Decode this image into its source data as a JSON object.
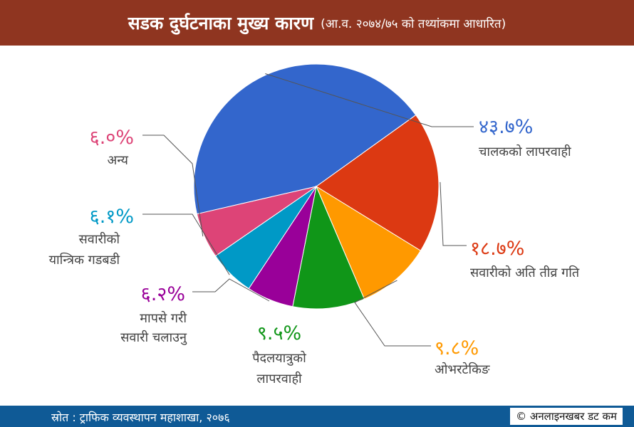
{
  "header": {
    "title": "सडक दुर्घटनाका मुख्य कारण",
    "subtitle": "(आ.व. २०७४/७५ को तथ्यांकमा आधारित)"
  },
  "footer": {
    "source": "स्रोत : ट्राफिक व्यवस्थापन महाशाखा, २०७६",
    "copyright": "© अनलाइनखबर डट कम"
  },
  "chart_data": {
    "type": "pie",
    "title": "सडक दुर्घटनाका मुख्य कारण",
    "subtitle": "(आ.व. २०७४/७५ को तथ्यांकमा आधारित)",
    "unit": "%",
    "slices": [
      {
        "name": "चालकको लापरवाही",
        "value": 43.7,
        "label": "४३.७%",
        "color": "#3366cc"
      },
      {
        "name": "सवारीको अति तीव्र गति",
        "value": 18.7,
        "label": "१८.७%",
        "color": "#dc3912"
      },
      {
        "name": "ओभरटेकिङ",
        "value": 9.8,
        "label": "९.८%",
        "color": "#ff9900"
      },
      {
        "name": "पैदलयात्रुको लापरवाही",
        "value": 9.5,
        "label": "९.५%",
        "color": "#109618"
      },
      {
        "name": "मापसे गरी सवारी चलाउनु",
        "value": 6.2,
        "label": "६.२%",
        "color": "#990099"
      },
      {
        "name": "सवारीको यान्त्रिक गडबडी",
        "value": 6.1,
        "label": "६.१%",
        "color": "#0099c6"
      },
      {
        "name": "अन्य",
        "value": 6.0,
        "label": "६.०%",
        "color": "#dd4477"
      }
    ]
  }
}
